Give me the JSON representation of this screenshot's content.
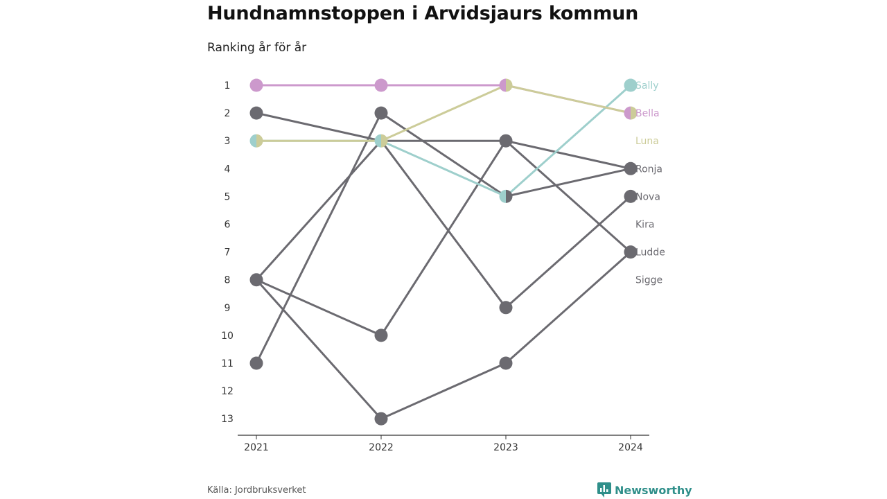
{
  "title": "Hundnamnstoppen i Arvidsjaurs kommun",
  "subtitle": "Ranking år för år",
  "source": "Källa: Jordbruksverket",
  "brand": "Newsworthy",
  "colors": {
    "Sally": "#9ecfcc",
    "Bella": "#cc99cc",
    "Luna": "#cccc99",
    "Ronja": "#6b6a70",
    "Nova": "#6b6a70",
    "Kira": "#6b6a70",
    "Ludde": "#6b6a70",
    "Sigge": "#6b6a70",
    "brand": "#2f8f8a"
  },
  "chart_data": {
    "type": "line",
    "subtype": "bump",
    "x": [
      "2021",
      "2022",
      "2023",
      "2024"
    ],
    "yticks": [
      1,
      2,
      3,
      4,
      5,
      6,
      7,
      8,
      9,
      10,
      11,
      12,
      13
    ],
    "y_reversed": true,
    "ylim": [
      1,
      13
    ],
    "series": [
      {
        "name": "Sally",
        "values": [
          3,
          3,
          5,
          1
        ]
      },
      {
        "name": "Bella",
        "values": [
          1,
          1,
          1,
          2
        ]
      },
      {
        "name": "Luna",
        "values": [
          3,
          3,
          1,
          2
        ]
      },
      {
        "name": "Ronja",
        "values": [
          2,
          3,
          3,
          4
        ]
      },
      {
        "name": "Nova",
        "values": [
          8,
          3,
          9,
          5
        ]
      },
      {
        "name": "Kira",
        "values": [
          11,
          2,
          5,
          4
        ]
      },
      {
        "name": "Ludde",
        "values": [
          8,
          13,
          11,
          7
        ]
      },
      {
        "name": "Sigge",
        "values": [
          8,
          10,
          3,
          7
        ]
      }
    ]
  }
}
